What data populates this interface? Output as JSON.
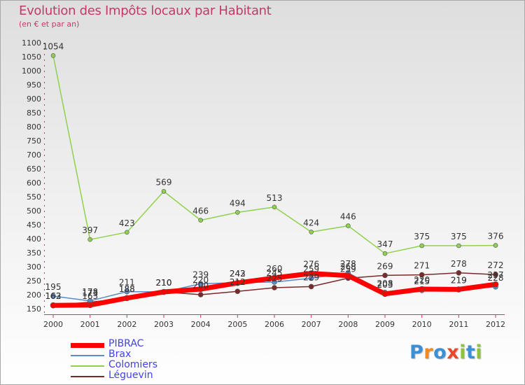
{
  "chart_data": {
    "type": "line",
    "title": "Evolution des Impôts locaux par Habitant",
    "subtitle": "(en € et par an)",
    "x": [
      "2000",
      "2001",
      "2002",
      "2003",
      "2004",
      "2005",
      "2006",
      "2007",
      "2008",
      "2009",
      "2010",
      "2011",
      "2012"
    ],
    "ylim": [
      150,
      1100
    ],
    "yticks": [
      150,
      200,
      250,
      300,
      350,
      400,
      450,
      500,
      550,
      600,
      650,
      700,
      750,
      800,
      850,
      900,
      950,
      1000,
      1050,
      1100
    ],
    "grid": false,
    "legend_position": "bottom-left",
    "series": [
      {
        "name": "Colomiers",
        "color": "#8fd14f",
        "values": [
          1054,
          397,
          423,
          569,
          466,
          494,
          513,
          424,
          446,
          347,
          375,
          375,
          376
        ],
        "labels": [
          "1054",
          "397",
          "423",
          "569",
          "466",
          "494",
          "513",
          "424",
          "446",
          "347",
          "375",
          "375",
          "376"
        ]
      },
      {
        "name": "Léguevin",
        "color": "#7a2a2a",
        "values": [
          163,
          173,
          188,
          210,
          200,
          212,
          225,
          229,
          259,
          269,
          271,
          278,
          272
        ],
        "labels": [
          "163",
          "173",
          "188",
          "210",
          "200",
          "212",
          "225",
          "229",
          "259",
          "269",
          "271",
          "278",
          "272"
        ]
      },
      {
        "name": "Brax",
        "color": "#5a8ac8",
        "values": [
          195,
          178,
          211,
          210,
          239,
          243,
          245,
          259,
          278,
          208,
          215,
          219,
          228
        ],
        "labels": [
          "195",
          "178",
          "211",
          "210",
          "239",
          "243",
          "245",
          "259",
          "278",
          "208",
          "215",
          "219",
          "228"
        ]
      },
      {
        "name": "PIBRAC",
        "color": "#ff0000",
        "values": [
          162,
          163,
          188,
          210,
          220,
          242,
          260,
          276,
          268,
          203,
          220,
          219,
          237
        ],
        "labels": [
          "162",
          "163",
          "188",
          "210",
          "220",
          "242",
          "260",
          "276",
          "268",
          "203",
          "220",
          "219",
          "237"
        ]
      }
    ]
  },
  "legend": {
    "items": [
      {
        "name": "PIBRAC",
        "color": "#ff0000"
      },
      {
        "name": "Brax",
        "color": "#5a8ac8"
      },
      {
        "name": "Colomiers",
        "color": "#8fd14f"
      },
      {
        "name": "Léguevin",
        "color": "#7a2a2a"
      }
    ]
  },
  "logo": {
    "text": "Proxiti",
    "colors": [
      "#3a8fd6",
      "#f08a1c",
      "#3a8fd6",
      "#e64a2a",
      "#8fc43a",
      "#3a8fd6",
      "#8fc43a"
    ]
  }
}
